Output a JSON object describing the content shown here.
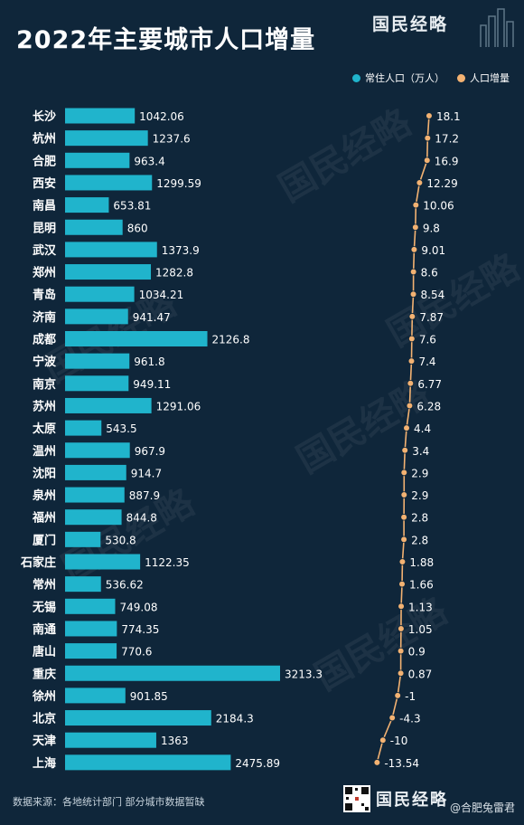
{
  "header": {
    "title": "2022年主要城市人口增量",
    "brand": "国民经略"
  },
  "legend": {
    "population_label": "常住人口（万人）",
    "increase_label": "人口增量"
  },
  "colors": {
    "background": "#0f263a",
    "bar": "#20b4cc",
    "line": "#f3b272",
    "text": "#ffffff"
  },
  "chart_data": {
    "type": "bar",
    "categories": [
      "长沙",
      "杭州",
      "合肥",
      "西安",
      "南昌",
      "昆明",
      "武汉",
      "郑州",
      "青岛",
      "济南",
      "成都",
      "宁波",
      "南京",
      "苏州",
      "太原",
      "温州",
      "沈阳",
      "泉州",
      "福州",
      "厦门",
      "石家庄",
      "常州",
      "无锡",
      "南通",
      "唐山",
      "重庆",
      "徐州",
      "北京",
      "天津",
      "上海"
    ],
    "series": [
      {
        "name": "常住人口（万人）",
        "type": "bar",
        "values": [
          1042.06,
          1237.6,
          963.4,
          1299.59,
          653.81,
          860,
          1373.9,
          1282.8,
          1034.21,
          941.47,
          2126.8,
          961.8,
          949.11,
          1291.06,
          543.5,
          967.9,
          914.7,
          887.9,
          844.8,
          530.8,
          1122.35,
          536.62,
          749.08,
          774.35,
          770.6,
          3213.3,
          901.85,
          2184.3,
          1363,
          2475.89
        ]
      },
      {
        "name": "人口增量",
        "type": "line",
        "values": [
          18.1,
          17.2,
          16.9,
          12.29,
          10.06,
          9.8,
          9.01,
          8.6,
          8.54,
          7.87,
          7.6,
          7.4,
          6.77,
          6.28,
          4.4,
          3.4,
          2.9,
          2.9,
          2.8,
          2.8,
          1.88,
          1.66,
          1.13,
          1.05,
          0.9,
          0.87,
          -1,
          -4.3,
          -10,
          -13.54
        ]
      }
    ],
    "legend_position": "top-right",
    "grid": false
  },
  "footer": {
    "source": "数据来源：各地统计部门 部分城市数据暂缺",
    "brand": "国民经略",
    "handle": "@合肥兔雷君"
  },
  "watermarks": [
    "国民经略",
    "国民经略",
    "国民经略",
    "国民经略",
    "国民经略",
    "国民经略"
  ]
}
